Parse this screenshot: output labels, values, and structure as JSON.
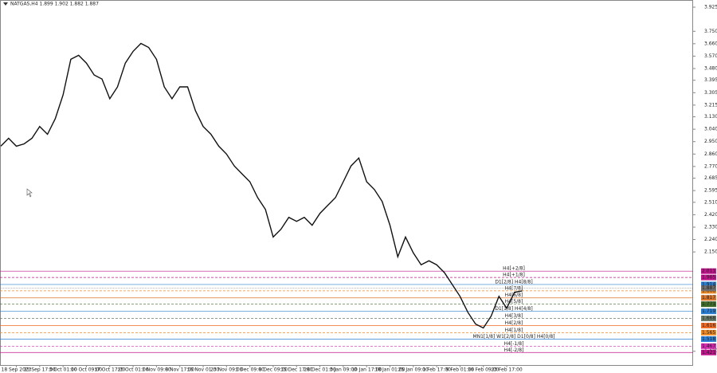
{
  "chart_data": {
    "type": "line",
    "title": "NATGAS,H4  1.899 1.902 1.882 1.887",
    "categories": [
      null,
      null,
      "18 Sep 2023",
      null,
      null,
      "25 Sep 17:00",
      null,
      null,
      "3 Oct 01:00",
      null,
      null,
      "10 Oct 09:00",
      null,
      null,
      "17 Oct 17:00",
      null,
      null,
      "25 Oct 01:00",
      null,
      null,
      "1 Nov 09:00",
      null,
      null,
      "8 Nov 17:00",
      null,
      null,
      "16 Nov 01:00",
      null,
      null,
      "23 Nov 09:00",
      null,
      null,
      "1 Dec 09:00",
      null,
      null,
      "8 Dec 09:00",
      null,
      null,
      "15 Dec 17:00",
      null,
      null,
      "28 Dec 01:00",
      null,
      null,
      "3 Jan 09:00",
      null,
      null,
      "10 Jan 17:00",
      null,
      null,
      "18 Jan 01:00",
      null,
      null,
      "25 Jan 09:00",
      null,
      null,
      "1 Feb 17:00",
      null,
      null,
      "9 Feb 01:00",
      null,
      null,
      "16 Feb 09:00",
      null,
      null,
      "23 Feb 17:00",
      null,
      null
    ],
    "series": [
      {
        "color": "#111111",
        "values": [
          2.917,
          2.974,
          2.917,
          2.934,
          2.974,
          3.06,
          3.003,
          3.117,
          3.289,
          3.547,
          3.576,
          3.519,
          3.433,
          3.404,
          3.261,
          3.347,
          3.519,
          3.605,
          3.662,
          3.633,
          3.547,
          3.347,
          3.261,
          3.347,
          3.347,
          3.175,
          3.06,
          3.003,
          2.917,
          2.86,
          2.774,
          2.716,
          2.659,
          2.544,
          2.458,
          2.258,
          2.315,
          2.401,
          2.372,
          2.401,
          2.344,
          2.43,
          2.487,
          2.544,
          2.659,
          2.774,
          2.831,
          2.659,
          2.602,
          2.516,
          2.344,
          2.115,
          2.258,
          2.143,
          2.057,
          2.086,
          2.057,
          2.0,
          1.914,
          1.828,
          1.713,
          1.627,
          1.599,
          1.685,
          1.828,
          1.742,
          1.857,
          1.868
        ]
      }
    ],
    "ylim": [
      1.33,
      3.977
    ],
    "yticks": [
      3.925,
      {
        "value": 3.75,
        "label": "3.750"
      },
      {
        "value": 3.66,
        "label": "3.660"
      },
      {
        "value": 3.57,
        "label": "3.570"
      },
      {
        "value": 3.48,
        "label": "3.480"
      },
      3.395,
      3.305,
      3.215,
      {
        "value": 3.13,
        "label": "3.130"
      },
      {
        "value": 3.04,
        "label": "3.040"
      },
      {
        "value": 2.95,
        "label": "2.950"
      },
      {
        "value": 2.86,
        "label": "2.860"
      },
      {
        "value": 2.77,
        "label": "2.770"
      },
      2.685,
      2.595,
      {
        "value": 2.51,
        "label": "2.510"
      },
      {
        "value": 2.42,
        "label": "2.420"
      },
      {
        "value": 2.33,
        "label": "2.330"
      },
      {
        "value": 2.24,
        "label": "2.240"
      },
      {
        "value": 2.15,
        "label": "2.150"
      },
      {
        "value": 1.43,
        "label": "1.430"
      }
    ],
    "levels": [
      {
        "label": "H4[+2/8]",
        "value": 2.011,
        "color": "#c0148c"
      },
      {
        "label": "H4[+1/8]",
        "value": 1.965,
        "color": "#c0148c"
      },
      {
        "label": "D1[2/8] H4[8/8]",
        "value": 1.914,
        "color": "#2a7fd4"
      },
      {
        "label": "H4[7/8]",
        "value": 1.868,
        "color": "#f08a24"
      },
      {
        "label": "H4[6/8]",
        "value": 1.817,
        "color": "#d9752a"
      },
      {
        "label": "H4[5/8]",
        "value": 1.771,
        "color": "#3f6b2a"
      },
      {
        "label": "D1[1/8] H4[4/8]",
        "value": 1.719,
        "color": "#2a7fd4"
      },
      {
        "label": "H4[3/8]",
        "value": 1.668,
        "color": "#6b7d6b"
      },
      {
        "label": "H4[2/8]",
        "value": 1.616,
        "color": "#f06a24"
      },
      {
        "label": "H4[1/8]",
        "value": 1.565,
        "color": "#f08a24"
      },
      {
        "label": "MN1[1/8] W1[2/8] D1[0/8] H4[0/8]",
        "value": 1.518,
        "color": "#2a7fd4"
      },
      {
        "label": "H4[-1/8]",
        "value": 1.467,
        "color": "#d42ab0"
      },
      {
        "label": "H4[-2/8]",
        "value": 1.421,
        "color": "#c0148c"
      }
    ],
    "current_price": {
      "value": 1.887,
      "color": "#707070"
    }
  }
}
